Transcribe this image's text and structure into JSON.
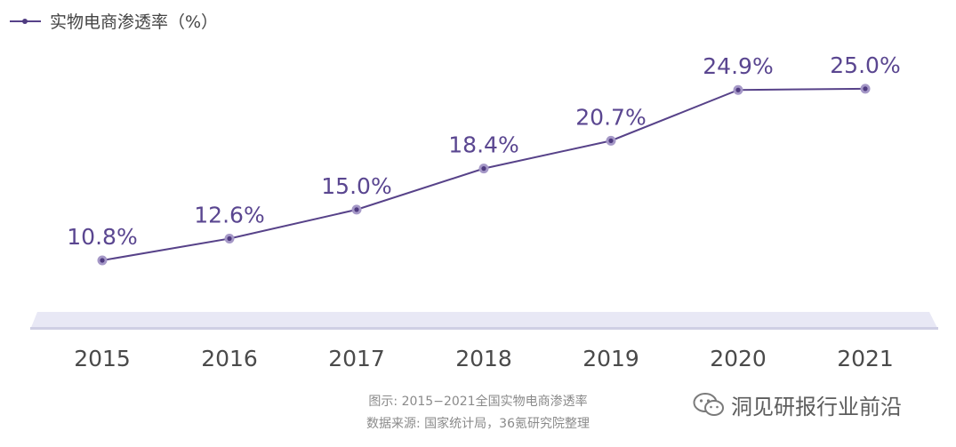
{
  "chart_data": {
    "type": "line",
    "categories": [
      "2015",
      "2016",
      "2017",
      "2018",
      "2019",
      "2020",
      "2021"
    ],
    "series": [
      {
        "name": "实物电商渗透率（%）",
        "values": [
          10.8,
          12.6,
          15.0,
          18.4,
          20.7,
          24.9,
          25.0
        ],
        "labels": [
          "10.8%",
          "12.6%",
          "15.0%",
          "18.4%",
          "20.7%",
          "24.9%",
          "25.0%"
        ]
      }
    ],
    "ylim": [
      0,
      30
    ],
    "legend_position": "top-left",
    "grid": false,
    "colors": {
      "line": "#574289",
      "marker": "#4f3b80",
      "marker_halo": "#a598c7",
      "label": "#5a4690",
      "axis_band": "#e6e6f4"
    }
  },
  "footer": {
    "caption": "图示: 2015−2021全国实物电商渗透率",
    "source": "数据来源: 国家统计局，36氪研究院整理"
  },
  "watermark": {
    "icon": "wechat-icon",
    "text": "洞见研报行业前沿"
  }
}
